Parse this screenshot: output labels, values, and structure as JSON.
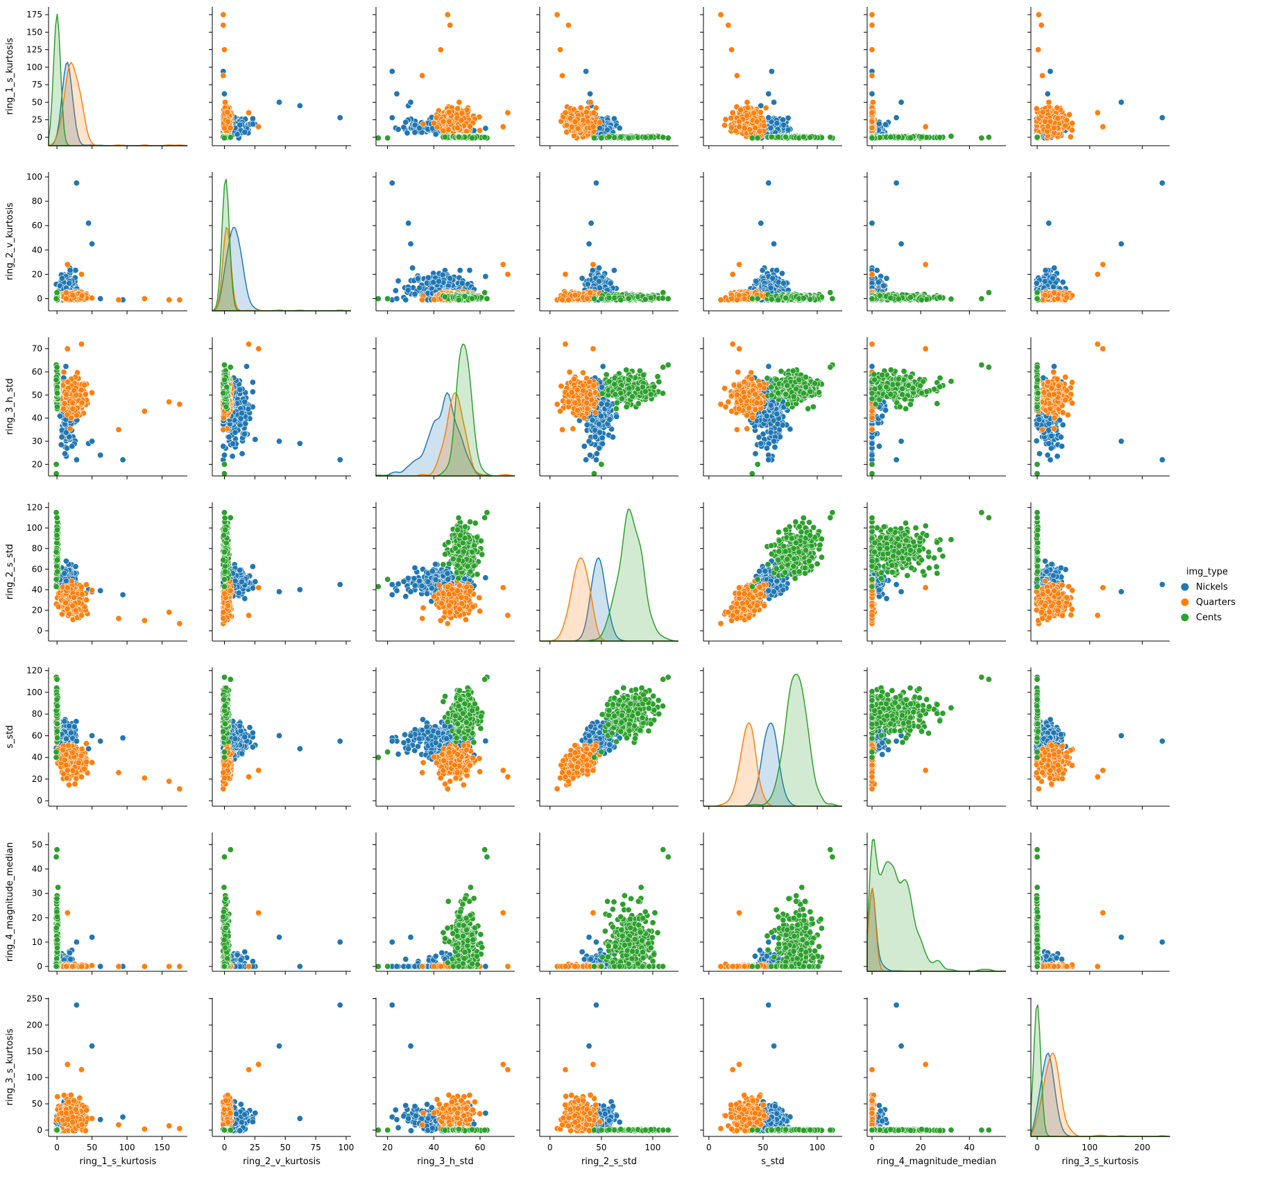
{
  "chart_data": {
    "type": "scatter",
    "variables": [
      "ring_1_s_kurtosis",
      "ring_2_v_kurtosis",
      "ring_3_h_std",
      "ring_2_s_std",
      "s_std",
      "ring_4_magnitude_median",
      "ring_3_s_kurtosis"
    ],
    "axis_ticks": [
      [
        0,
        50,
        100,
        150
      ],
      [
        0,
        25,
        50,
        75,
        100
      ],
      [
        20,
        40,
        60
      ],
      [
        0,
        50,
        100
      ],
      [
        0,
        50,
        100
      ],
      [
        0,
        20,
        40
      ],
      [
        0,
        100,
        200
      ]
    ],
    "y_ticks": [
      [
        0,
        25,
        50,
        75,
        100,
        125,
        150,
        175
      ],
      [
        0,
        20,
        40,
        60,
        80,
        100
      ],
      [
        20,
        30,
        40,
        50,
        60,
        70
      ],
      [
        0,
        20,
        40,
        60,
        80,
        100,
        120
      ],
      [
        0,
        20,
        40,
        60,
        80,
        100,
        120
      ],
      [
        0,
        10,
        20,
        30,
        40,
        50
      ],
      [
        0,
        50,
        100,
        150,
        200,
        250
      ]
    ],
    "axis_ranges": [
      [
        -12,
        186
      ],
      [
        -10,
        104
      ],
      [
        15,
        75
      ],
      [
        -10,
        125
      ],
      [
        -5,
        123
      ],
      [
        -2,
        55
      ],
      [
        -12,
        252
      ]
    ],
    "grid": false,
    "legend": {
      "title": "img_type",
      "position": "right",
      "entries": [
        {
          "label": "Nickels",
          "color": "#1f77b4"
        },
        {
          "label": "Quarters",
          "color": "#ff7f0e"
        },
        {
          "label": "Cents",
          "color": "#2ca02c"
        }
      ]
    },
    "groups": [
      {
        "name": "Nickels",
        "color": "#1f77b4",
        "center": [
          15,
          8,
          44,
          48,
          57,
          2,
          20
        ],
        "spread": [
          8,
          8,
          9,
          9,
          9,
          3,
          15
        ],
        "extremes": [
          [
            94,
            -1,
            22,
            35,
            58,
            0,
            25
          ],
          [
            62,
            0,
            24,
            39,
            55,
            0,
            20
          ],
          [
            45,
            62,
            29,
            40,
            48,
            0,
            22
          ],
          [
            28,
            95,
            22,
            45,
            55,
            10,
            238
          ],
          [
            50,
            45,
            30,
            38,
            60,
            12,
            160
          ]
        ]
      },
      {
        "name": "Quarters",
        "color": "#ff7f0e",
        "center": [
          22,
          2,
          49,
          30,
          36,
          0,
          30
        ],
        "spread": [
          12,
          2,
          5,
          10,
          9,
          0.5,
          20
        ],
        "extremes": [
          [
            175,
            -1,
            46,
            7,
            11,
            0,
            3
          ],
          [
            160,
            -1,
            47,
            18,
            18,
            0,
            8
          ],
          [
            125,
            0,
            43,
            10,
            21,
            0,
            2
          ],
          [
            88,
            -1,
            35,
            12,
            26,
            0,
            10
          ],
          [
            35,
            20,
            72,
            15,
            22,
            0,
            115
          ],
          [
            15,
            28,
            70,
            42,
            28,
            22,
            125
          ]
        ]
      },
      {
        "name": "Cents",
        "color": "#2ca02c",
        "center": [
          0,
          1,
          53,
          78,
          80,
          8,
          0
        ],
        "spread": [
          1,
          1.5,
          4,
          15,
          13,
          10,
          1
        ],
        "extremes": [
          [
            -1,
            0,
            16,
            43,
            40,
            0,
            0
          ],
          [
            -1,
            0,
            20,
            50,
            45,
            0,
            0
          ],
          [
            -1,
            0,
            63,
            115,
            114,
            45,
            0
          ],
          [
            0,
            5,
            62,
            110,
            112,
            48,
            0
          ]
        ]
      }
    ],
    "diagonal": "kde"
  }
}
